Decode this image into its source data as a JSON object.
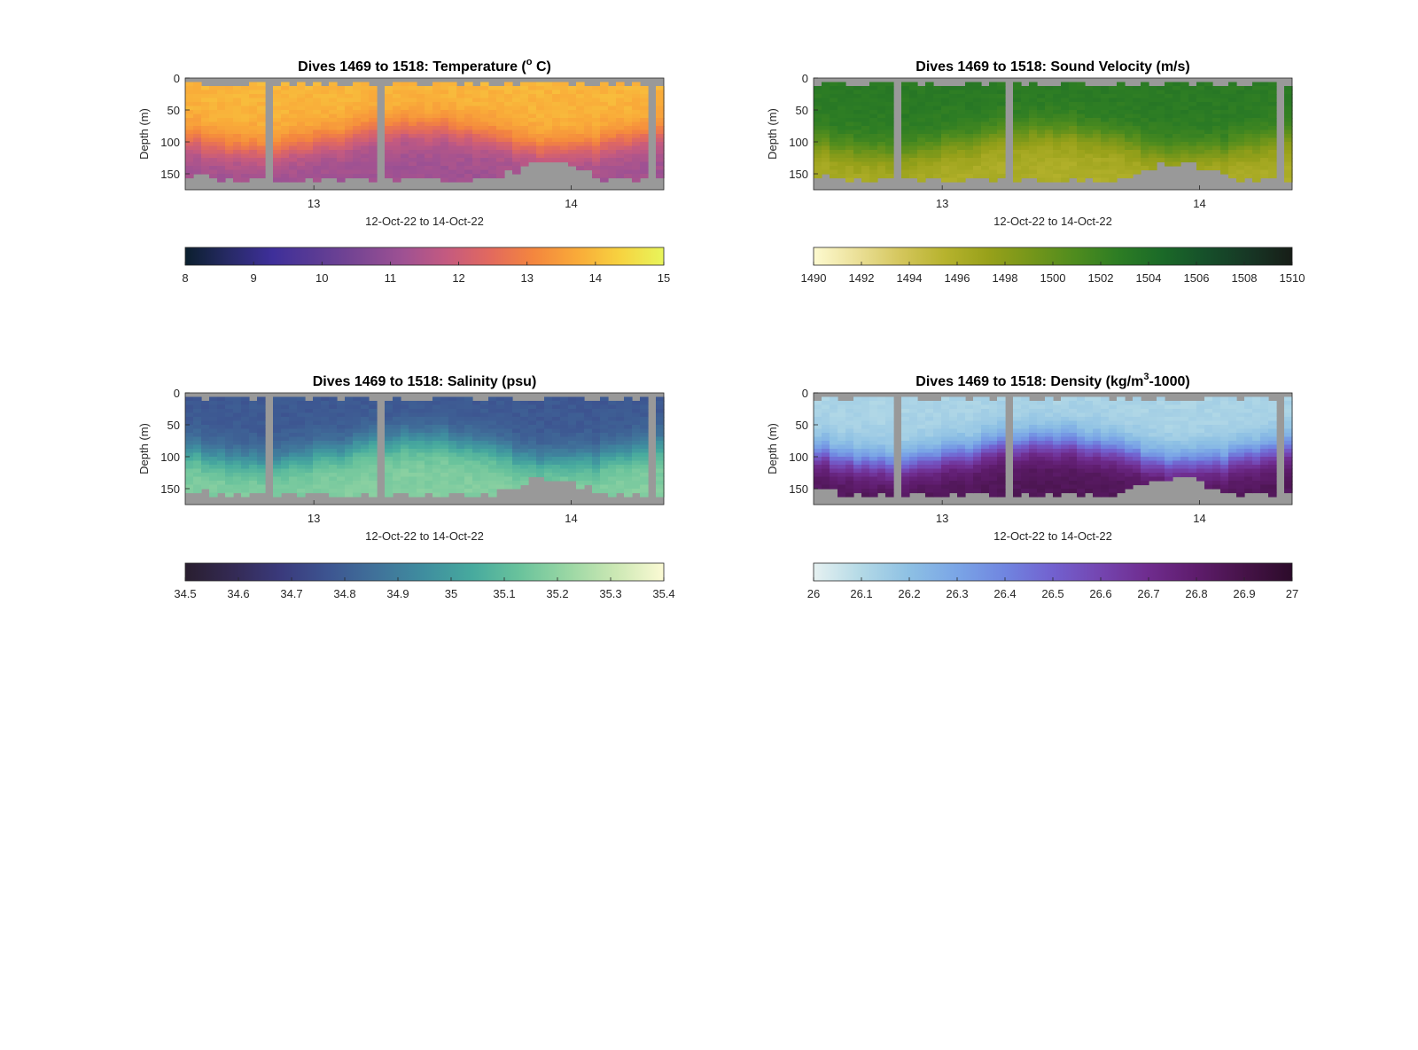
{
  "chart_data": [
    {
      "type": "heatmap",
      "title": {
        "pre": "Dives 1469 to 1518: Temperature (",
        "sup": "o",
        "post": " C)"
      },
      "xlabel": "12-Oct-22 to 14-Oct-22",
      "ylabel": "Depth (m)",
      "x_ticks": [
        {
          "value": 13,
          "label": "13"
        },
        {
          "value": 14,
          "label": "14"
        }
      ],
      "xlim": [
        12.5,
        14.36
      ],
      "y_ticks": [
        {
          "value": 0,
          "label": "0"
        },
        {
          "value": 50,
          "label": "50"
        },
        {
          "value": 100,
          "label": "100"
        },
        {
          "value": 150,
          "label": "150"
        }
      ],
      "ylim": [
        0,
        175
      ],
      "y_reversed": true,
      "missing_color": "#999999",
      "field": {
        "surface": 13.9,
        "deep": 11.2,
        "thermocline_depth": 95
      },
      "colorbar": {
        "min": 8,
        "max": 15,
        "ticks": [
          "8",
          "9",
          "10",
          "11",
          "12",
          "13",
          "14",
          "15"
        ],
        "colors": [
          "#0b1f2e",
          "#272a66",
          "#3e2f9a",
          "#5a3b94",
          "#7a4693",
          "#9e5193",
          "#c45a80",
          "#e2695e",
          "#f4863e",
          "#f9aa39",
          "#f7d340",
          "#e8f55b"
        ]
      }
    },
    {
      "type": "heatmap",
      "title": {
        "pre": "Dives 1469 to 1518: Sound Velocity (m/s)",
        "sup": "",
        "post": ""
      },
      "xlabel": "12-Oct-22 to 14-Oct-22",
      "ylabel": "Depth (m)",
      "x_ticks": [
        {
          "value": 13,
          "label": "13"
        },
        {
          "value": 14,
          "label": "14"
        }
      ],
      "xlim": [
        12.5,
        14.36
      ],
      "y_ticks": [
        {
          "value": 0,
          "label": "0"
        },
        {
          "value": 50,
          "label": "50"
        },
        {
          "value": 100,
          "label": "100"
        },
        {
          "value": 150,
          "label": "150"
        }
      ],
      "ylim": [
        0,
        175
      ],
      "y_reversed": true,
      "missing_color": "#999999",
      "field": {
        "surface": 1503.0,
        "deep": 1496.0,
        "thermocline_depth": 100
      },
      "colorbar": {
        "min": 1490,
        "max": 1510,
        "ticks": [
          "1490",
          "1492",
          "1494",
          "1496",
          "1498",
          "1500",
          "1502",
          "1504",
          "1506",
          "1508",
          "1510"
        ],
        "colors": [
          "#fdfad0",
          "#ebe098",
          "#d4c65c",
          "#b7b32e",
          "#98a11a",
          "#75961a",
          "#4f8c1e",
          "#2d7d24",
          "#1b6a28",
          "#16502a",
          "#173725",
          "#171d17"
        ]
      }
    },
    {
      "type": "heatmap",
      "title": {
        "pre": "Dives 1469 to 1518: Salinity (psu)",
        "sup": "",
        "post": ""
      },
      "xlabel": "12-Oct-22 to 14-Oct-22",
      "ylabel": "Depth (m)",
      "x_ticks": [
        {
          "value": 13,
          "label": "13"
        },
        {
          "value": 14,
          "label": "14"
        }
      ],
      "xlim": [
        12.5,
        14.36
      ],
      "y_ticks": [
        {
          "value": 0,
          "label": "0"
        },
        {
          "value": 50,
          "label": "50"
        },
        {
          "value": 100,
          "label": "100"
        },
        {
          "value": 150,
          "label": "150"
        }
      ],
      "ylim": [
        0,
        175
      ],
      "y_reversed": true,
      "missing_color": "#999999",
      "field": {
        "surface": 34.78,
        "deep": 35.18,
        "thermocline_depth": 90
      },
      "colorbar": {
        "min": 34.5,
        "max": 35.4,
        "ticks": [
          "34.5",
          "34.6",
          "34.7",
          "34.8",
          "34.9",
          "35",
          "35.1",
          "35.2",
          "35.3",
          "35.4"
        ],
        "colors": [
          "#291e2f",
          "#342a54",
          "#3a3a7c",
          "#3d5591",
          "#40729a",
          "#3f8e9f",
          "#47aa9e",
          "#6ac39c",
          "#9ad7a4",
          "#cce8b4",
          "#fbfad4"
        ]
      }
    },
    {
      "type": "heatmap",
      "title": {
        "pre": "Dives 1469 to 1518: Density (kg/m",
        "sup": "3",
        "post": "-1000)"
      },
      "xlabel": "12-Oct-22 to 14-Oct-22",
      "ylabel": "Depth (m)",
      "x_ticks": [
        {
          "value": 13,
          "label": "13"
        },
        {
          "value": 14,
          "label": "14"
        }
      ],
      "xlim": [
        12.5,
        14.36
      ],
      "y_ticks": [
        {
          "value": 0,
          "label": "0"
        },
        {
          "value": 50,
          "label": "50"
        },
        {
          "value": 100,
          "label": "100"
        },
        {
          "value": 150,
          "label": "150"
        }
      ],
      "ylim": [
        0,
        175
      ],
      "y_reversed": true,
      "missing_color": "#999999",
      "field": {
        "surface": 26.12,
        "deep": 26.86,
        "thermocline_depth": 95
      },
      "colorbar": {
        "min": 26,
        "max": 27,
        "ticks": [
          "26",
          "26.1",
          "26.2",
          "26.3",
          "26.4",
          "26.5",
          "26.6",
          "26.7",
          "26.8",
          "26.9",
          "27"
        ],
        "colors": [
          "#e6f1f1",
          "#b3d9e6",
          "#8dc0e4",
          "#7aa5e6",
          "#7085e0",
          "#7261cf",
          "#7445b0",
          "#6f2c8e",
          "#5e1c6c",
          "#461348",
          "#2c0b2a"
        ]
      }
    }
  ]
}
